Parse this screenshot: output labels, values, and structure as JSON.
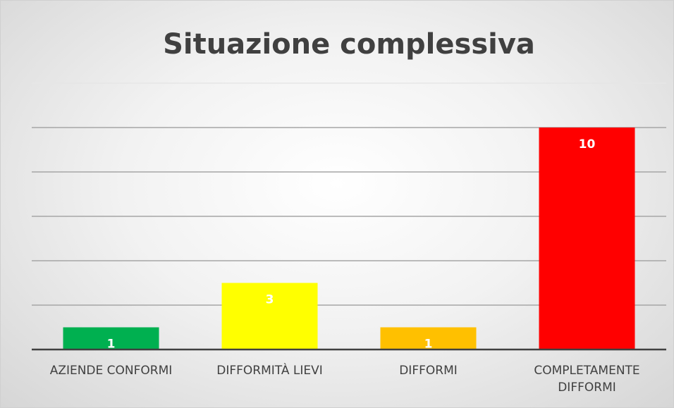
{
  "chart_data": {
    "type": "bar",
    "title": "Situazione complessiva",
    "categories": [
      "AZIENDE CONFORMI",
      "DIFFORMITÀ LIEVI",
      "DIFFORMI",
      "COMPLETAMENTE DIFFORMI"
    ],
    "values": [
      1,
      3,
      1,
      10
    ],
    "colors": [
      "#00b050",
      "#ffff00",
      "#ffc000",
      "#ff0000"
    ],
    "ylim": [
      0,
      12
    ],
    "yticks": [
      0,
      2,
      4,
      6,
      8,
      10,
      12
    ],
    "grid": true,
    "tick_labels": false,
    "data_labels": true
  }
}
